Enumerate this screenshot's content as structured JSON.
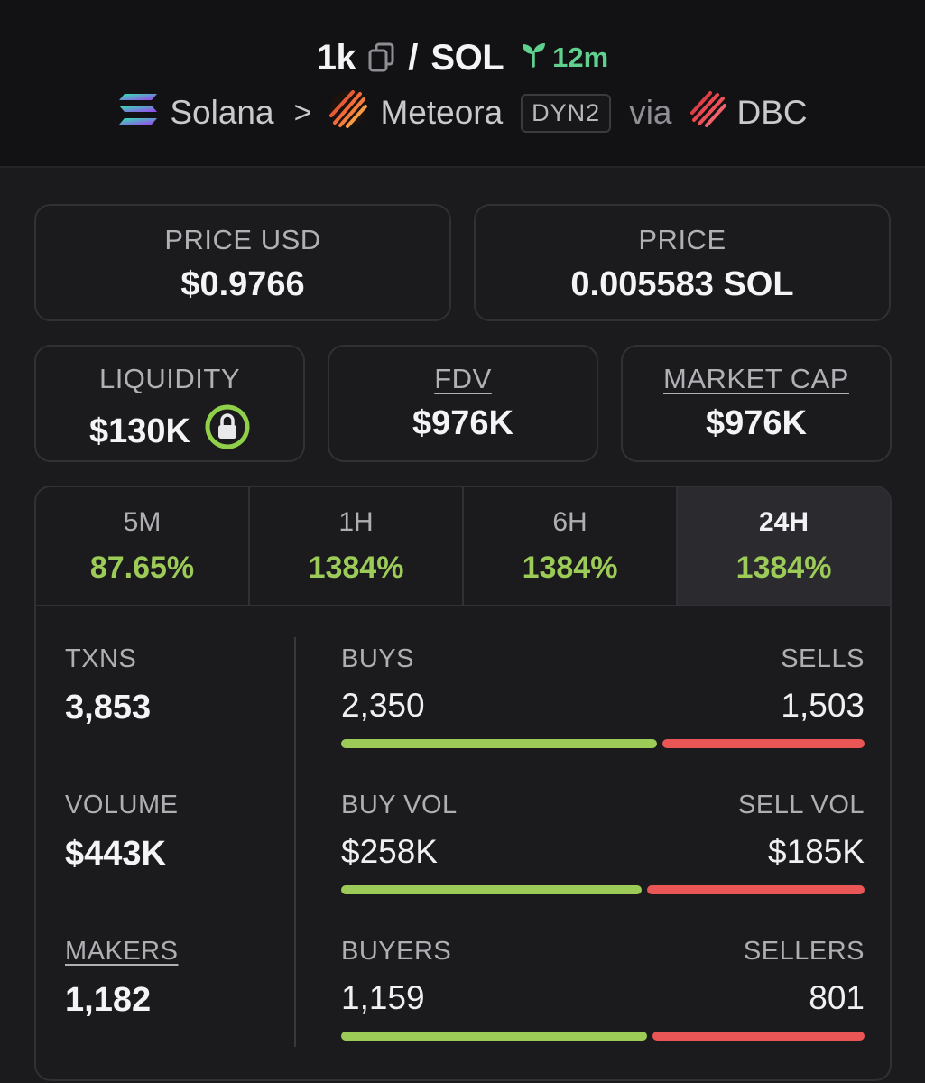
{
  "header": {
    "symbol": "1k",
    "slash": "/",
    "quote": "SOL",
    "age": "12m",
    "chain": "Solana",
    "chevron": ">",
    "dex": "Meteora",
    "dex_badge": "DYN2",
    "via": "via",
    "launchpad": "DBC"
  },
  "cards": {
    "price_usd": {
      "label": "PRICE USD",
      "value": "$0.9766"
    },
    "price": {
      "label": "PRICE",
      "value": "0.005583 SOL"
    },
    "liquidity": {
      "label": "LIQUIDITY",
      "value": "$130K"
    },
    "fdv": {
      "label": "FDV",
      "value": "$976K"
    },
    "market_cap": {
      "label": "MARKET CAP",
      "value": "$976K"
    }
  },
  "tabs": [
    {
      "label": "5M",
      "value": "87.65%"
    },
    {
      "label": "1H",
      "value": "1384%"
    },
    {
      "label": "6H",
      "value": "1384%"
    },
    {
      "label": "24H",
      "value": "1384%"
    }
  ],
  "active_tab": "24H",
  "stats": {
    "txns": {
      "label": "TXNS",
      "value": "3,853"
    },
    "volume": {
      "label": "VOLUME",
      "value": "$443K"
    },
    "makers": {
      "label": "MAKERS",
      "value": "1,182"
    },
    "buys_sells": {
      "left_label": "BUYS",
      "right_label": "SELLS",
      "left_value": "2,350",
      "right_value": "1,503",
      "buy_ratio": 0.61
    },
    "vol_split": {
      "left_label": "BUY VOL",
      "right_label": "SELL VOL",
      "left_value": "$258K",
      "right_value": "$185K",
      "buy_ratio": 0.58
    },
    "buyers_sellers": {
      "left_label": "BUYERS",
      "right_label": "SELLERS",
      "left_value": "1,159",
      "right_value": "801",
      "buy_ratio": 0.59
    }
  },
  "colors": {
    "positive": "#9ccb58",
    "negative": "#ea5656",
    "age_green": "#5fd08e",
    "lock_green": "#8fcf4a"
  },
  "icons": [
    "copy-icon",
    "seedling-icon",
    "solana-logo-icon",
    "meteora-logo-icon",
    "dbc-logo-icon",
    "lock-icon"
  ]
}
